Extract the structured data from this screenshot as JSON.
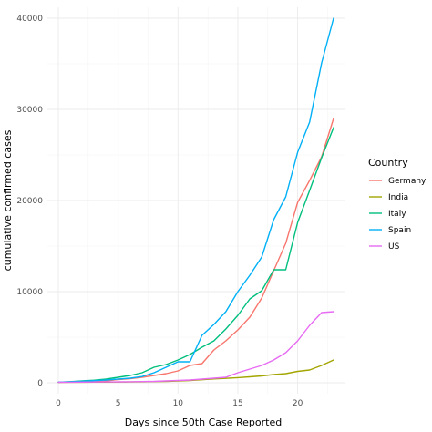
{
  "chart_data": {
    "type": "line",
    "title": "",
    "xlabel": "Days since 50th Case Reported",
    "ylabel": "cumulative confirmed cases",
    "xlim": [
      0,
      23
    ],
    "ylim": [
      0,
      40000
    ],
    "x_ticks": [
      0,
      5,
      10,
      15,
      20
    ],
    "y_ticks": [
      0,
      10000,
      20000,
      30000,
      40000
    ],
    "grid": true,
    "legend": {
      "title": "Country",
      "position": "right"
    },
    "series": [
      {
        "name": "Germany",
        "color": "#F8766D",
        "x": [
          0,
          1,
          2,
          3,
          4,
          5,
          6,
          7,
          8,
          9,
          10,
          11,
          12,
          13,
          14,
          15,
          16,
          17,
          18,
          19,
          20,
          21,
          22,
          23
        ],
        "y": [
          60,
          80,
          120,
          160,
          200,
          350,
          450,
          600,
          800,
          1000,
          1300,
          1900,
          2100,
          3600,
          4600,
          5800,
          7200,
          9300,
          12300,
          15300,
          19800,
          22200,
          24800,
          29000
        ]
      },
      {
        "name": "India",
        "color": "#A3A500",
        "x": [
          0,
          1,
          2,
          3,
          4,
          5,
          6,
          7,
          8,
          9,
          10,
          11,
          12,
          13,
          14,
          15,
          16,
          17,
          18,
          19,
          20,
          21,
          22,
          23
        ],
        "y": [
          50,
          55,
          60,
          70,
          75,
          80,
          90,
          110,
          130,
          150,
          200,
          250,
          330,
          420,
          480,
          560,
          650,
          750,
          900,
          1000,
          1250,
          1400,
          1900,
          2500
        ]
      },
      {
        "name": "Italy",
        "color": "#00BF7D",
        "x": [
          0,
          1,
          2,
          3,
          4,
          5,
          6,
          7,
          8,
          9,
          10,
          11,
          12,
          13,
          14,
          15,
          16,
          17,
          18,
          19,
          20,
          21,
          22,
          23
        ],
        "y": [
          60,
          120,
          200,
          280,
          400,
          600,
          800,
          1100,
          1700,
          2000,
          2500,
          3100,
          3900,
          4600,
          5900,
          7400,
          9200,
          10100,
          12400,
          12400,
          17600,
          21100,
          24700,
          28000
        ]
      },
      {
        "name": "Spain",
        "color": "#00B0F6",
        "x": [
          0,
          1,
          2,
          3,
          4,
          5,
          6,
          7,
          8,
          9,
          10,
          11,
          12,
          13,
          14,
          15,
          16,
          17,
          18,
          19,
          20,
          21,
          22,
          23
        ],
        "y": [
          70,
          110,
          170,
          230,
          300,
          400,
          500,
          680,
          1100,
          1700,
          2300,
          2300,
          5200,
          6400,
          7800,
          10000,
          11800,
          13800,
          17900,
          20400,
          25300,
          28600,
          35100,
          40000
        ]
      },
      {
        "name": "US",
        "color": "#E76BF3",
        "x": [
          0,
          1,
          2,
          3,
          4,
          5,
          6,
          7,
          8,
          9,
          10,
          11,
          12,
          13,
          14,
          15,
          16,
          17,
          18,
          19,
          20,
          21,
          22,
          23
        ],
        "y": [
          50,
          60,
          70,
          80,
          90,
          100,
          110,
          130,
          150,
          200,
          250,
          300,
          400,
          500,
          600,
          1100,
          1500,
          1900,
          2500,
          3300,
          4600,
          6300,
          7700,
          7800
        ]
      }
    ]
  }
}
